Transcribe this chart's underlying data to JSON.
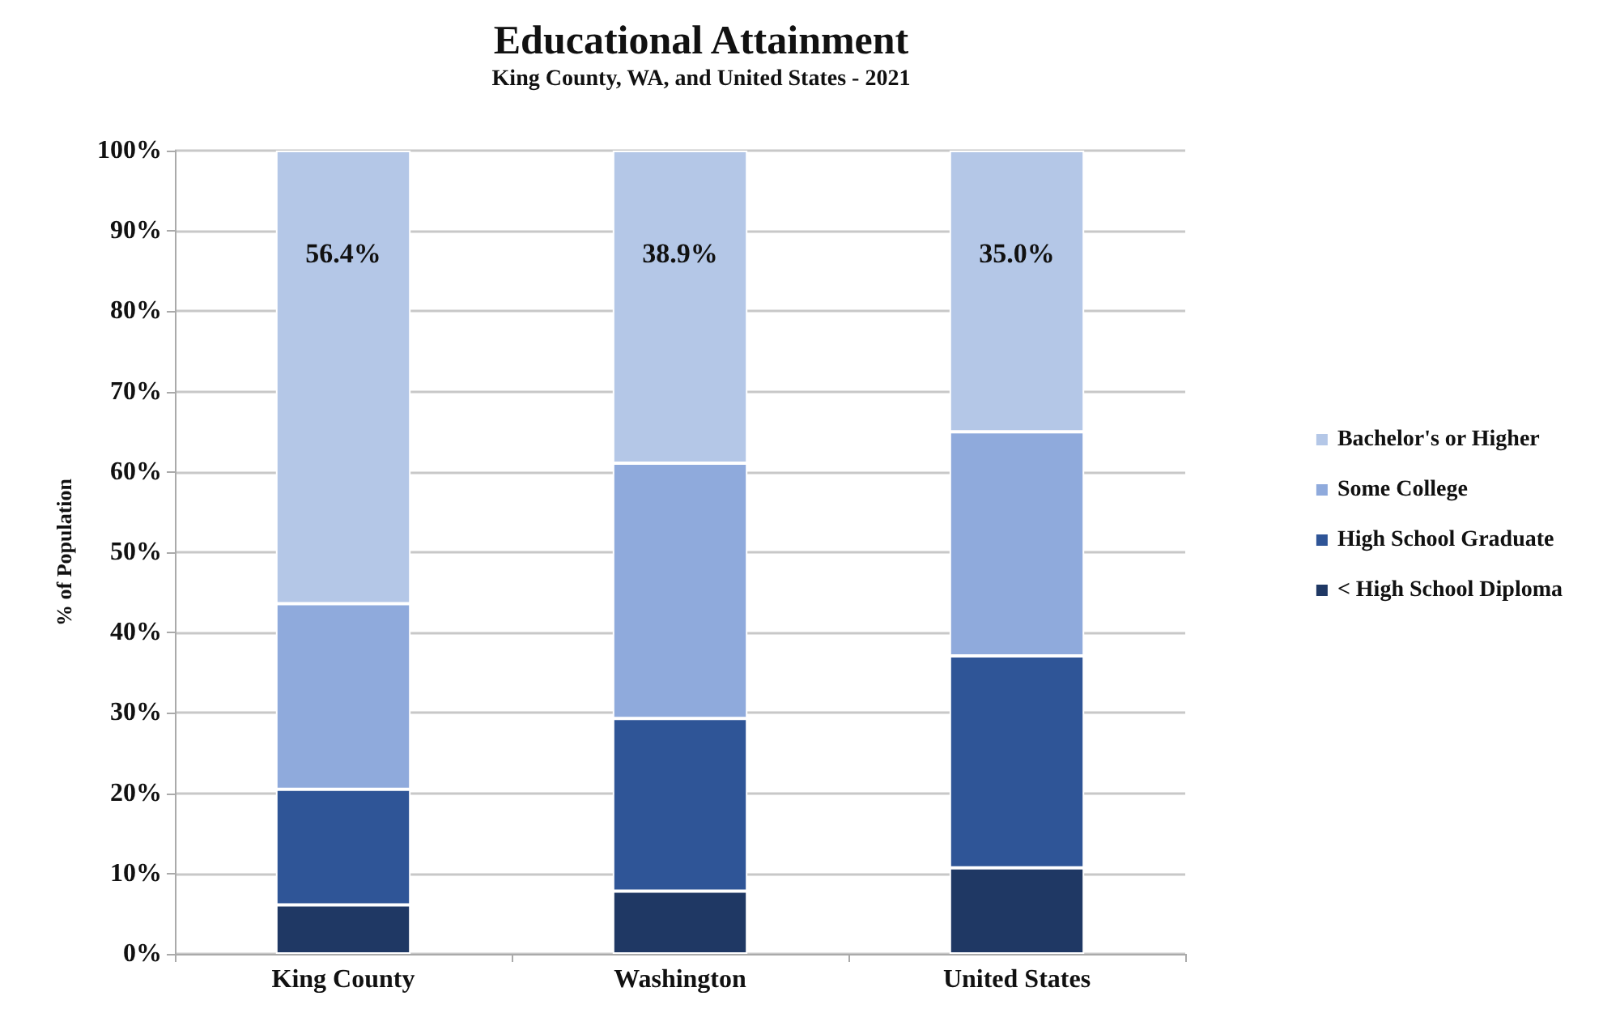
{
  "chart_data": {
    "type": "bar",
    "stacked": true,
    "title": "Educational Attainment",
    "subtitle": "King County, WA, and United States - 2021",
    "ylabel": "% of Population",
    "categories": [
      "King County",
      "Washington",
      "United States"
    ],
    "series": [
      {
        "name": "< High School Diploma",
        "color": "#1f3864",
        "values": [
          6.1,
          7.8,
          10.7
        ]
      },
      {
        "name": "High School Graduate",
        "color": "#2f5597",
        "values": [
          14.4,
          21.5,
          26.4
        ]
      },
      {
        "name": "Some College",
        "color": "#8faadc",
        "values": [
          23.1,
          31.8,
          27.9
        ]
      },
      {
        "name": "Bachelor's or Higher",
        "color": "#b4c7e7",
        "values": [
          56.4,
          38.9,
          35.0
        ],
        "value_labels": [
          "56.4%",
          "38.9%",
          "35.0%"
        ]
      }
    ],
    "ylim": [
      0,
      100
    ],
    "yticks": [
      {
        "value": 0,
        "label": "0%"
      },
      {
        "value": 10,
        "label": "10%"
      },
      {
        "value": 20,
        "label": "20%"
      },
      {
        "value": 30,
        "label": "30%"
      },
      {
        "value": 40,
        "label": "40%"
      },
      {
        "value": 50,
        "label": "50%"
      },
      {
        "value": 60,
        "label": "60%"
      },
      {
        "value": 70,
        "label": "70%"
      },
      {
        "value": 80,
        "label": "80%"
      },
      {
        "value": 90,
        "label": "90%"
      },
      {
        "value": 100,
        "label": "100%"
      }
    ],
    "grid": "y",
    "legend": "right"
  }
}
